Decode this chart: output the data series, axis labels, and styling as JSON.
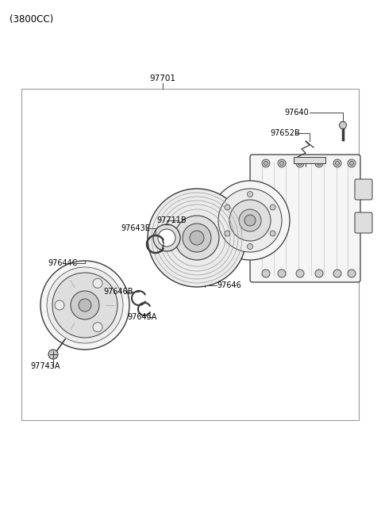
{
  "title_top": "(3800CC)",
  "bg": "#ffffff",
  "lc": "#3a3a3a",
  "lc_light": "#aaaaaa",
  "fc0": "#f5f5f5",
  "fc1": "#ebebeb",
  "fc2": "#dedede",
  "fc3": "#cccccc",
  "fc4": "#bbbbbb",
  "label_97701": "97701",
  "label_97640": "97640",
  "label_97652B": "97652B",
  "label_97643E": "97643E",
  "label_97711B": "97711B",
  "label_97646": "97646",
  "label_97644C": "97644C",
  "label_97646B": "97646B",
  "label_97643A": "97643A",
  "label_97743A": "97743A",
  "fs_title": 8.5,
  "fs_label": 7.0,
  "fs_main": 7.5
}
